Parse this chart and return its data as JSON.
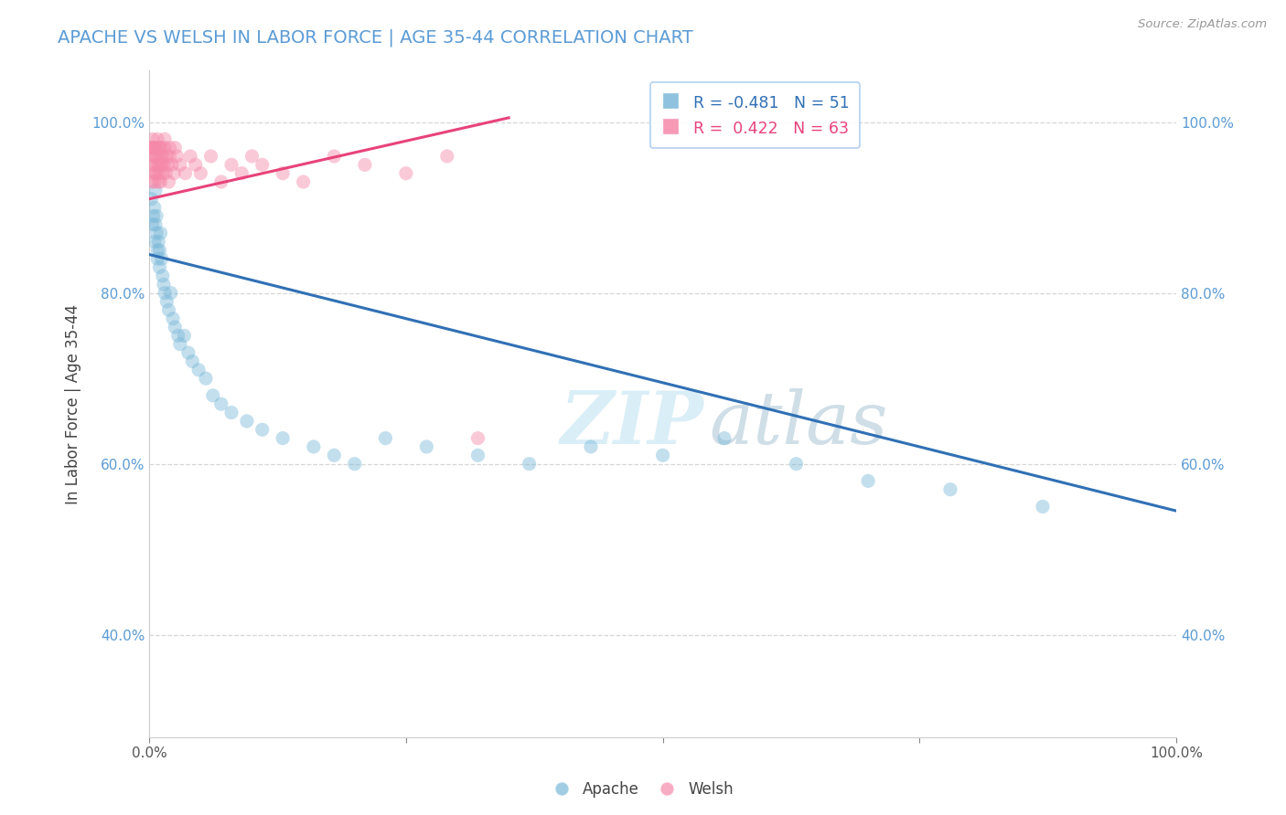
{
  "title": "APACHE VS WELSH IN LABOR FORCE | AGE 35-44 CORRELATION CHART",
  "source_text": "Source: ZipAtlas.com",
  "ylabel": "In Labor Force | Age 35-44",
  "xlim": [
    0.0,
    1.0
  ],
  "ylim": [
    0.28,
    1.06
  ],
  "xticks": [
    0.0,
    0.25,
    0.5,
    0.75,
    1.0
  ],
  "xticklabels": [
    "0.0%",
    "",
    "",
    "",
    "100.0%"
  ],
  "yticks": [
    0.4,
    0.6,
    0.8,
    1.0
  ],
  "yticklabels": [
    "40.0%",
    "60.0%",
    "80.0%",
    "100.0%"
  ],
  "legend_apache": "R = -0.481   N = 51",
  "legend_welsh": "R =  0.422   N = 63",
  "apache_color": "#7ab8d9",
  "welsh_color": "#f589aa",
  "apache_line_color": "#3070b5",
  "welsh_line_color": "#e8437a",
  "background_color": "#ffffff",
  "grid_color": "#cccccc",
  "title_color": "#5b9bd5",
  "watermark_color": "#daeef7",
  "apache_x": [
    0.002,
    0.003,
    0.004,
    0.005,
    0.005,
    0.006,
    0.006,
    0.007,
    0.007,
    0.008,
    0.008,
    0.009,
    0.01,
    0.01,
    0.011,
    0.012,
    0.013,
    0.014,
    0.015,
    0.017,
    0.019,
    0.021,
    0.023,
    0.025,
    0.028,
    0.03,
    0.034,
    0.038,
    0.042,
    0.048,
    0.055,
    0.062,
    0.07,
    0.08,
    0.095,
    0.11,
    0.13,
    0.16,
    0.18,
    0.2,
    0.23,
    0.27,
    0.32,
    0.37,
    0.43,
    0.5,
    0.56,
    0.63,
    0.7,
    0.78,
    0.87
  ],
  "apache_y": [
    0.91,
    0.88,
    0.89,
    0.9,
    0.86,
    0.88,
    0.92,
    0.87,
    0.89,
    0.85,
    0.84,
    0.86,
    0.83,
    0.85,
    0.87,
    0.84,
    0.82,
    0.81,
    0.8,
    0.79,
    0.78,
    0.8,
    0.77,
    0.76,
    0.75,
    0.74,
    0.75,
    0.73,
    0.72,
    0.71,
    0.7,
    0.68,
    0.67,
    0.66,
    0.65,
    0.64,
    0.63,
    0.62,
    0.61,
    0.6,
    0.63,
    0.62,
    0.61,
    0.6,
    0.62,
    0.61,
    0.63,
    0.6,
    0.58,
    0.57,
    0.55
  ],
  "apache_line_x0": 0.0,
  "apache_line_x1": 1.0,
  "apache_line_y0": 0.845,
  "apache_line_y1": 0.545,
  "welsh_x": [
    0.002,
    0.003,
    0.003,
    0.004,
    0.004,
    0.005,
    0.005,
    0.006,
    0.006,
    0.007,
    0.007,
    0.008,
    0.008,
    0.009,
    0.009,
    0.01,
    0.01,
    0.011,
    0.011,
    0.012,
    0.012,
    0.013,
    0.013,
    0.014,
    0.015,
    0.016,
    0.017,
    0.018,
    0.019,
    0.02,
    0.022,
    0.024,
    0.027,
    0.03,
    0.035,
    0.04,
    0.045,
    0.05,
    0.06,
    0.07,
    0.08,
    0.09,
    0.1,
    0.11,
    0.13,
    0.15,
    0.18,
    0.21,
    0.25,
    0.29,
    0.001,
    0.002,
    0.003,
    0.004,
    0.005,
    0.006,
    0.008,
    0.01,
    0.012,
    0.015,
    0.02,
    0.025,
    0.32
  ],
  "welsh_y": [
    0.95,
    0.93,
    0.96,
    0.94,
    0.97,
    0.93,
    0.96,
    0.95,
    0.94,
    0.96,
    0.94,
    0.95,
    0.96,
    0.93,
    0.95,
    0.94,
    0.97,
    0.95,
    0.93,
    0.96,
    0.95,
    0.94,
    0.96,
    0.95,
    0.97,
    0.94,
    0.96,
    0.95,
    0.93,
    0.96,
    0.95,
    0.94,
    0.96,
    0.95,
    0.94,
    0.96,
    0.95,
    0.94,
    0.96,
    0.93,
    0.95,
    0.94,
    0.96,
    0.95,
    0.94,
    0.93,
    0.96,
    0.95,
    0.94,
    0.96,
    0.97,
    0.97,
    0.98,
    0.97,
    0.97,
    0.97,
    0.98,
    0.97,
    0.97,
    0.98,
    0.97,
    0.97,
    0.63
  ],
  "welsh_line_x0": 0.0,
  "welsh_line_x1": 0.35,
  "welsh_line_y0": 0.91,
  "welsh_line_y1": 1.005
}
